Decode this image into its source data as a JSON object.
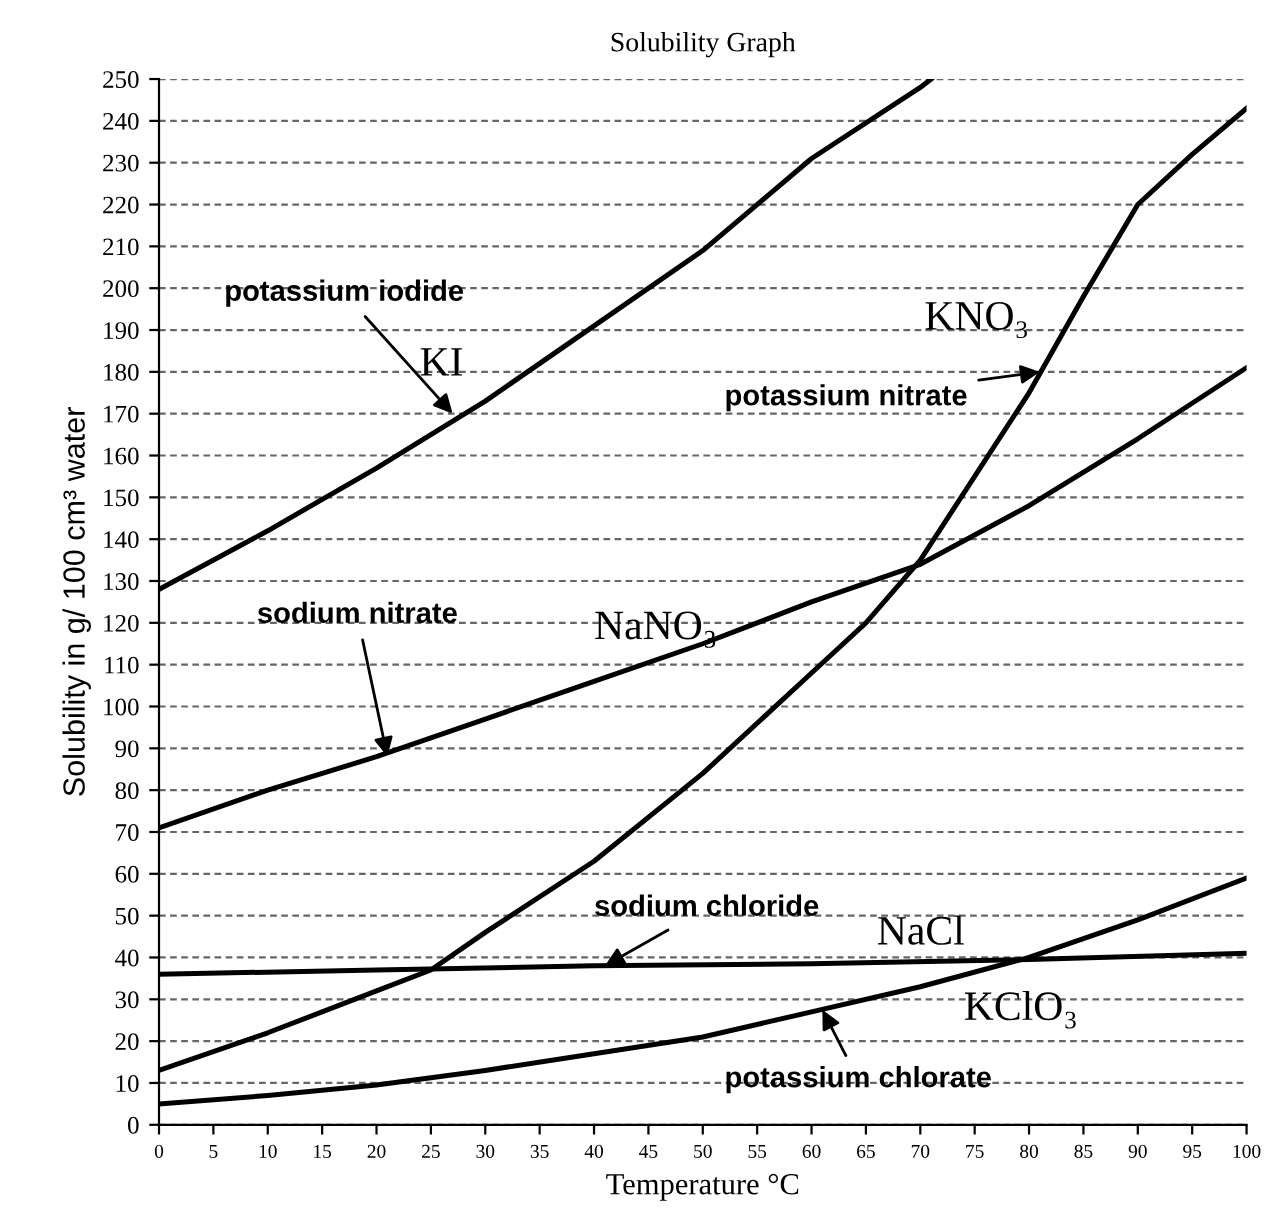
{
  "chart_data": {
    "type": "line",
    "title": "Solubility Graph",
    "xlabel": "Temperature °C",
    "ylabel": "Solubility in g/ 100 cm³ water",
    "xlim": [
      0,
      100
    ],
    "xticks": [
      0,
      5,
      10,
      15,
      20,
      25,
      30,
      35,
      40,
      45,
      50,
      55,
      60,
      65,
      70,
      75,
      80,
      85,
      90,
      95,
      100
    ],
    "ylim": [
      0,
      250
    ],
    "yticks": [
      0,
      10,
      20,
      30,
      40,
      50,
      60,
      70,
      80,
      90,
      100,
      110,
      120,
      130,
      140,
      150,
      160,
      170,
      180,
      190,
      200,
      210,
      220,
      230,
      240,
      250
    ],
    "grid": "y",
    "marker": "none",
    "line_style": "solid",
    "legend": false,
    "series": [
      {
        "name": "KI",
        "color": "#000000",
        "x": [
          0,
          10,
          20,
          30,
          40,
          50,
          60,
          70,
          71
        ],
        "values": [
          128,
          142,
          157,
          173,
          191,
          209,
          231,
          248,
          250
        ]
      },
      {
        "name": "KNO₃",
        "color": "#000000",
        "x": [
          0,
          10,
          20,
          25,
          30,
          40,
          50,
          60,
          65,
          70,
          75,
          80,
          85,
          90,
          95,
          100
        ],
        "values": [
          13,
          22,
          32,
          37,
          46,
          63,
          84,
          108,
          120,
          135,
          155,
          175,
          198,
          220,
          232,
          243
        ]
      },
      {
        "name": "NaNO₃",
        "color": "#000000",
        "x": [
          0,
          10,
          20,
          30,
          40,
          50,
          60,
          70,
          80,
          90,
          100
        ],
        "values": [
          71,
          80,
          88,
          97,
          106,
          115,
          125,
          134,
          148,
          164,
          181
        ]
      },
      {
        "name": "NaCl",
        "color": "#000000",
        "x": [
          0,
          20,
          40,
          60,
          80,
          100
        ],
        "values": [
          36,
          37,
          38,
          38.5,
          39.5,
          41
        ]
      },
      {
        "name": "KClO₃",
        "color": "#000000",
        "x": [
          0,
          10,
          20,
          30,
          40,
          50,
          60,
          70,
          80,
          90,
          100
        ],
        "values": [
          5,
          7,
          9.5,
          13,
          17,
          21,
          27,
          33,
          40,
          49,
          59
        ]
      }
    ],
    "annotations": [
      {
        "text": "potassium iodide",
        "x": 27,
        "y": 170
      },
      {
        "text": "potassium nitrate",
        "x": 81,
        "y": 180
      },
      {
        "text": "sodium nitrate",
        "x": 21,
        "y": 88
      },
      {
        "text": "sodium chloride",
        "x": 41,
        "y": 38
      },
      {
        "text": "potassium chlorate",
        "x": 61,
        "y": 27.5
      }
    ]
  }
}
